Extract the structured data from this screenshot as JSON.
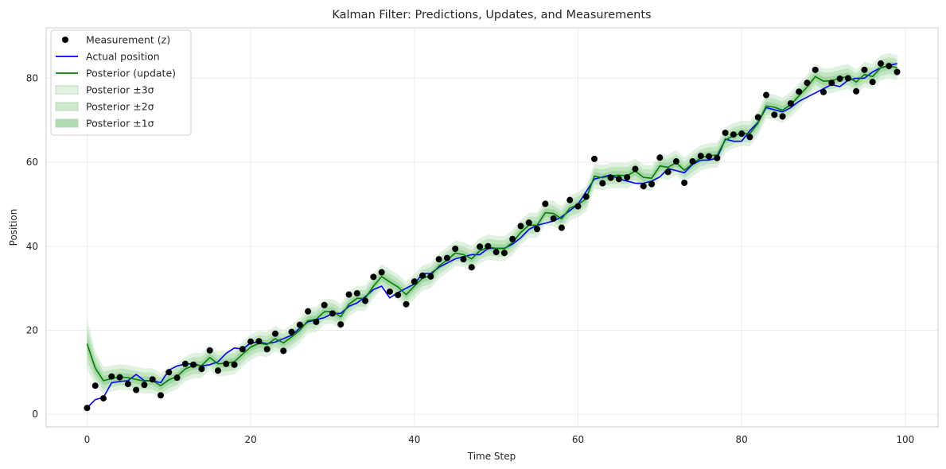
{
  "chart_data": {
    "type": "line",
    "title": "Kalman Filter: Predictions, Updates, and Measurements",
    "xlabel": "Time Step",
    "ylabel": "Position",
    "xlim": [
      -5,
      104
    ],
    "ylim": [
      -3,
      92
    ],
    "xticks": [
      0,
      20,
      40,
      60,
      80,
      100
    ],
    "yticks": [
      0,
      20,
      40,
      60,
      80
    ],
    "grid": true,
    "legend_position": "top-left",
    "colors": {
      "measurement": "#000000",
      "actual": "#0000ff",
      "posterior": "#008000",
      "band3": "#c8e6c8",
      "band2": "#a8d8a8",
      "band1": "#8cc98c"
    },
    "legend": [
      {
        "label": "Measurement (z)",
        "kind": "marker",
        "color": "#000000"
      },
      {
        "label": "Actual position",
        "kind": "line",
        "color": "#0000ff"
      },
      {
        "label": "Posterior (update)",
        "kind": "line",
        "color": "#008000"
      },
      {
        "label": "Posterior ±3σ",
        "kind": "patch",
        "color": "#e3f2e3"
      },
      {
        "label": "Posterior ±2σ",
        "kind": "patch",
        "color": "#cde8cd"
      },
      {
        "label": "Posterior ±1σ",
        "kind": "patch",
        "color": "#b4dcb4"
      }
    ],
    "band_sigma": [
      6.0,
      4.0,
      3.3,
      3.1,
      3.0,
      3.0,
      3.0,
      3.0,
      3.0,
      3.0,
      3.0,
      3.0,
      3.0,
      3.0,
      3.0,
      3.0,
      3.0,
      3.0,
      3.0,
      3.0,
      3.0,
      3.0,
      3.0,
      3.0,
      3.0,
      3.0,
      3.0,
      3.0,
      3.0,
      3.0,
      3.0,
      3.0,
      3.0,
      3.0,
      3.0,
      3.0,
      3.0,
      3.0,
      3.0,
      3.0,
      3.0,
      3.0,
      3.0,
      3.0,
      3.0,
      3.0,
      3.0,
      3.0,
      3.0,
      3.0,
      3.0,
      3.0,
      3.0,
      3.0,
      3.0,
      3.0,
      3.0,
      3.0,
      3.0,
      3.0,
      3.0,
      3.0,
      3.0,
      3.0,
      3.0,
      3.0,
      3.0,
      3.0,
      3.0,
      3.0,
      3.0,
      3.0,
      3.0,
      3.0,
      3.0,
      3.0,
      3.0,
      3.0,
      3.0,
      3.0,
      3.0,
      3.0,
      3.0,
      3.0,
      3.0,
      3.0,
      3.0,
      3.0,
      3.0,
      3.0,
      3.0,
      3.0,
      3.0,
      3.0,
      3.0,
      3.0,
      3.0,
      3.0,
      3.0,
      3.0
    ],
    "series": [
      {
        "name": "Measurement (z)",
        "type": "scatter",
        "x": [
          0,
          1,
          2,
          3,
          4,
          5,
          6,
          7,
          8,
          9,
          10,
          11,
          12,
          13,
          14,
          15,
          16,
          17,
          18,
          19,
          20,
          21,
          22,
          23,
          24,
          25,
          26,
          27,
          28,
          29,
          30,
          31,
          32,
          33,
          34,
          35,
          36,
          37,
          38,
          39,
          40,
          41,
          42,
          43,
          44,
          45,
          46,
          47,
          48,
          49,
          50,
          51,
          52,
          53,
          54,
          55,
          56,
          57,
          58,
          59,
          60,
          61,
          62,
          63,
          64,
          65,
          66,
          67,
          68,
          69,
          70,
          71,
          72,
          73,
          74,
          75,
          76,
          77,
          78,
          79,
          80,
          81,
          82,
          83,
          84,
          85,
          86,
          87,
          88,
          89,
          90,
          91,
          92,
          93,
          94,
          95,
          96,
          97,
          98,
          99
        ],
        "y": [
          1.5,
          6.8,
          3.8,
          9.0,
          8.8,
          7.2,
          5.8,
          7.0,
          8.3,
          4.5,
          10.0,
          8.7,
          12.0,
          11.8,
          10.8,
          15.2,
          10.4,
          12.0,
          11.8,
          15.5,
          17.3,
          17.4,
          15.5,
          19.2,
          15.1,
          19.6,
          21.3,
          24.5,
          22.0,
          26.0,
          24.0,
          21.4,
          28.5,
          28.8,
          27.0,
          32.7,
          33.8,
          29.2,
          28.4,
          26.2,
          31.6,
          33.0,
          32.8,
          36.9,
          37.2,
          39.4,
          36.9,
          35.0,
          39.9,
          40.0,
          38.6,
          38.4,
          41.7,
          44.8,
          45.6,
          44.1,
          50.1,
          46.6,
          44.4,
          51.0,
          49.5,
          51.8,
          60.8,
          55.0,
          56.3,
          56.0,
          56.4,
          58.4,
          54.3,
          54.8,
          61.1,
          57.7,
          60.2,
          55.1,
          60.2,
          61.5,
          61.4,
          61.0,
          67.0,
          66.6,
          66.8,
          66.0,
          70.7,
          76.0,
          71.3,
          70.9,
          74.0,
          76.8,
          78.9,
          82.0,
          76.7,
          78.9,
          79.9,
          80.0,
          76.9,
          82.0,
          79.1,
          83.5,
          82.9,
          81.5
        ]
      },
      {
        "name": "Actual position",
        "type": "line",
        "x": [
          0,
          1,
          2,
          3,
          4,
          5,
          6,
          7,
          8,
          9,
          10,
          11,
          12,
          13,
          14,
          15,
          16,
          17,
          18,
          19,
          20,
          21,
          22,
          23,
          24,
          25,
          26,
          27,
          28,
          29,
          30,
          31,
          32,
          33,
          34,
          35,
          36,
          37,
          38,
          39,
          40,
          41,
          42,
          43,
          44,
          45,
          46,
          47,
          48,
          49,
          50,
          51,
          52,
          53,
          54,
          55,
          56,
          57,
          58,
          59,
          60,
          61,
          62,
          63,
          64,
          65,
          66,
          67,
          68,
          69,
          70,
          71,
          72,
          73,
          74,
          75,
          76,
          77,
          78,
          79,
          80,
          81,
          82,
          83,
          84,
          85,
          86,
          87,
          88,
          89,
          90,
          91,
          92,
          93,
          94,
          95,
          96,
          97,
          98,
          99
        ],
        "y": [
          1.5,
          3.5,
          4.0,
          7.5,
          7.8,
          8.0,
          9.5,
          8.0,
          8.0,
          7.5,
          10.5,
          11.5,
          12.0,
          12.0,
          11.5,
          11.8,
          12.5,
          14.5,
          15.8,
          15.5,
          17.0,
          17.2,
          16.8,
          17.2,
          18.0,
          18.8,
          20.5,
          22.0,
          22.5,
          23.0,
          24.0,
          24.0,
          25.7,
          26.5,
          28.0,
          29.7,
          30.5,
          27.7,
          29.0,
          30.0,
          31.0,
          33.5,
          33.5,
          35.0,
          36.0,
          37.0,
          37.5,
          38.0,
          38.0,
          39.5,
          39.5,
          39.5,
          40.5,
          42.0,
          44.0,
          45.0,
          45.5,
          46.0,
          47.0,
          48.5,
          50.0,
          53.0,
          56.0,
          56.5,
          57.0,
          56.0,
          55.5,
          55.0,
          55.0,
          55.5,
          56.5,
          58.5,
          58.0,
          57.5,
          59.5,
          60.5,
          60.5,
          61.0,
          65.5,
          65.0,
          65.0,
          67.5,
          69.5,
          73.0,
          72.5,
          72.0,
          73.0,
          74.5,
          75.5,
          76.5,
          77.5,
          78.5,
          78.0,
          79.5,
          80.0,
          80.0,
          81.5,
          82.5,
          83.0,
          83.5
        ]
      },
      {
        "name": "Posterior (update)",
        "type": "line",
        "x": [
          0,
          1,
          2,
          3,
          4,
          5,
          6,
          7,
          8,
          9,
          10,
          11,
          12,
          13,
          14,
          15,
          16,
          17,
          18,
          19,
          20,
          21,
          22,
          23,
          24,
          25,
          26,
          27,
          28,
          29,
          30,
          31,
          32,
          33,
          34,
          35,
          36,
          37,
          38,
          39,
          40,
          41,
          42,
          43,
          44,
          45,
          46,
          47,
          48,
          49,
          50,
          51,
          52,
          53,
          54,
          55,
          56,
          57,
          58,
          59,
          60,
          61,
          62,
          63,
          64,
          65,
          66,
          67,
          68,
          69,
          70,
          71,
          72,
          73,
          74,
          75,
          76,
          77,
          78,
          79,
          80,
          81,
          82,
          83,
          84,
          85,
          86,
          87,
          88,
          89,
          90,
          91,
          92,
          93,
          94,
          95,
          96,
          97,
          98,
          99
        ],
        "y": [
          16.8,
          11.0,
          8.0,
          8.5,
          8.9,
          8.7,
          8.3,
          7.9,
          8.0,
          6.8,
          8.2,
          9.0,
          10.8,
          11.6,
          11.6,
          13.5,
          12.0,
          12.2,
          12.5,
          14.3,
          16.0,
          16.9,
          16.6,
          18.0,
          17.0,
          18.4,
          20.0,
          22.3,
          22.6,
          24.4,
          24.5,
          23.2,
          26.2,
          27.6,
          27.6,
          30.5,
          32.8,
          31.5,
          30.3,
          28.5,
          30.5,
          32.4,
          33.0,
          35.3,
          36.7,
          38.4,
          38.0,
          37.0,
          38.9,
          39.8,
          39.5,
          39.4,
          40.9,
          43.3,
          45.0,
          45.0,
          48.0,
          47.8,
          46.5,
          49.1,
          49.9,
          51.3,
          56.7,
          56.3,
          56.8,
          56.9,
          56.8,
          57.9,
          56.4,
          56.2,
          59.1,
          58.8,
          59.9,
          58.1,
          59.7,
          61.0,
          61.6,
          61.7,
          65.3,
          66.3,
          66.9,
          66.8,
          69.3,
          73.4,
          73.1,
          72.4,
          73.7,
          75.8,
          77.9,
          80.4,
          79.3,
          79.4,
          80.0,
          80.4,
          79.1,
          80.9,
          80.4,
          82.5,
          83.0,
          82.5
        ]
      }
    ]
  }
}
